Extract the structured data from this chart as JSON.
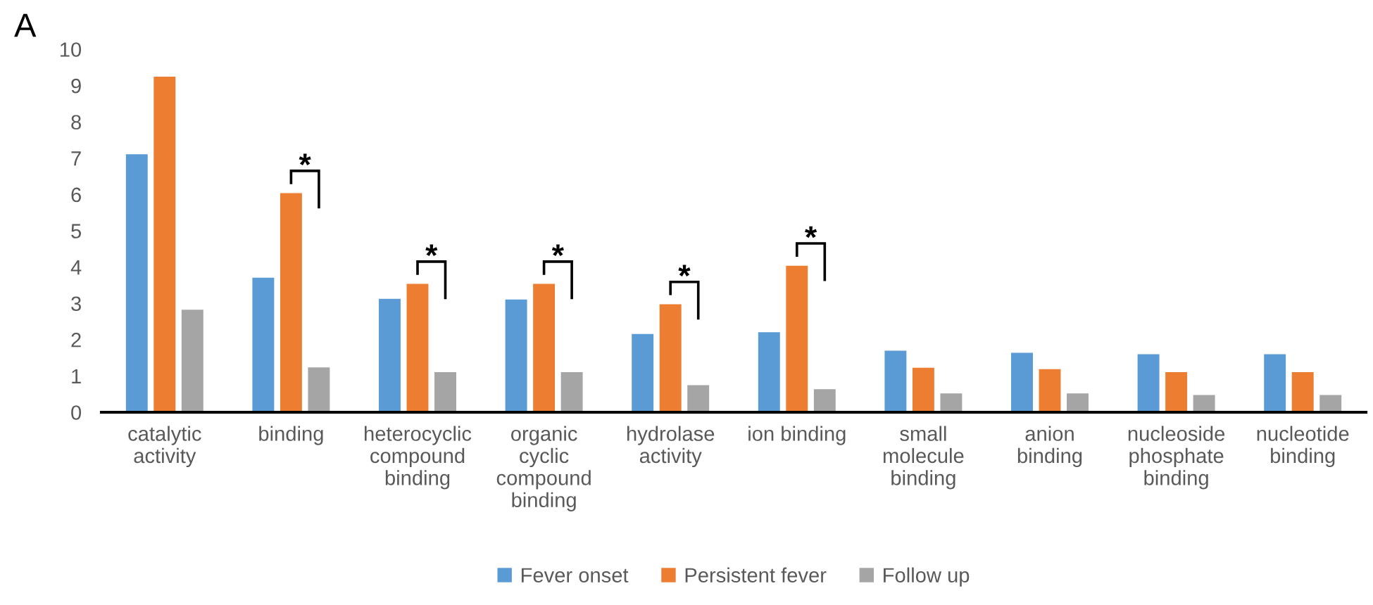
{
  "chart_data": {
    "type": "bar",
    "title": "A",
    "categories": [
      "catalytic\nactivity",
      "binding",
      "heterocyclic\ncompound\nbinding",
      "organic\ncyclic\ncompound\nbinding",
      "hydrolase\nactivity",
      "ion binding",
      "small\nmolecule\nbinding",
      "anion\nbinding",
      "nucleoside\nphosphate\nbinding",
      "nucleotide\nbinding"
    ],
    "ylim": [
      0,
      10
    ],
    "yticks": [
      0,
      1,
      2,
      3,
      4,
      5,
      6,
      7,
      8,
      9,
      10
    ],
    "grid": false,
    "legend": "bottom",
    "series": [
      {
        "name": "Fever onset",
        "color": "#5b9bd5",
        "values": [
          7.12,
          3.72,
          3.14,
          3.12,
          2.17,
          2.22,
          1.71,
          1.65,
          1.61,
          1.61
        ]
      },
      {
        "name": "Persistent fever",
        "color": "#ed7d31",
        "values": [
          9.26,
          6.05,
          3.55,
          3.55,
          2.99,
          4.05,
          1.24,
          1.2,
          1.12,
          1.12
        ]
      },
      {
        "name": "Follow up",
        "color": "#a5a5a5",
        "values": [
          2.84,
          1.25,
          1.12,
          1.12,
          0.76,
          0.65,
          0.53,
          0.53,
          0.49,
          0.49
        ]
      }
    ],
    "annotations": [
      {
        "text": "*",
        "x": "binding",
        "y": 6.05
      },
      {
        "text": "*",
        "x": "heterocyclic\ncompound\nbinding",
        "y": 3.55
      },
      {
        "text": "*",
        "x": "organic\ncyclic\ncompound\nbinding",
        "y": 3.55
      },
      {
        "text": "*",
        "x": "hydrolase\nactivity",
        "y": 2.99
      },
      {
        "text": "*",
        "x": "ion binding",
        "y": 4.05
      }
    ]
  }
}
